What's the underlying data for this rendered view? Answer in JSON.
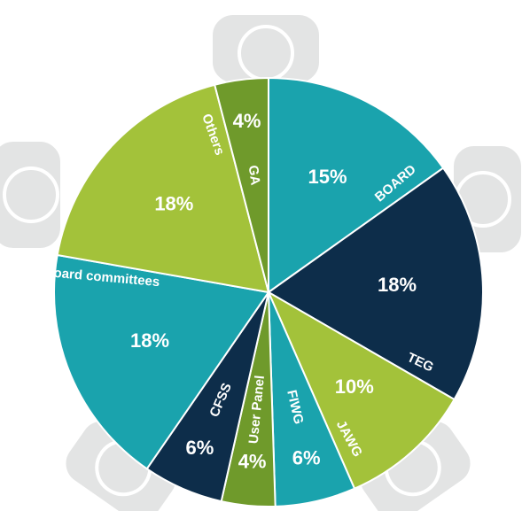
{
  "chart_data": {
    "type": "pie",
    "categories": [
      "BOARD",
      "TEG",
      "JAWG",
      "FIWG",
      "User Panel",
      "CFSS",
      "Board committees",
      "Others",
      "GA"
    ],
    "values": [
      15,
      18,
      10,
      6,
      4,
      6,
      18,
      18,
      4
    ],
    "value_labels": [
      "15%",
      "18%",
      "10%",
      "6%",
      "4%",
      "6%",
      "18%",
      "18%",
      "4%"
    ],
    "colors": [
      "#1aa3ad",
      "#0d2d4a",
      "#a3c23a",
      "#1aa3ad",
      "#6f9a2b",
      "#0d2d4a",
      "#1aa3ad",
      "#a3c23a",
      "#6f9a2b"
    ]
  }
}
